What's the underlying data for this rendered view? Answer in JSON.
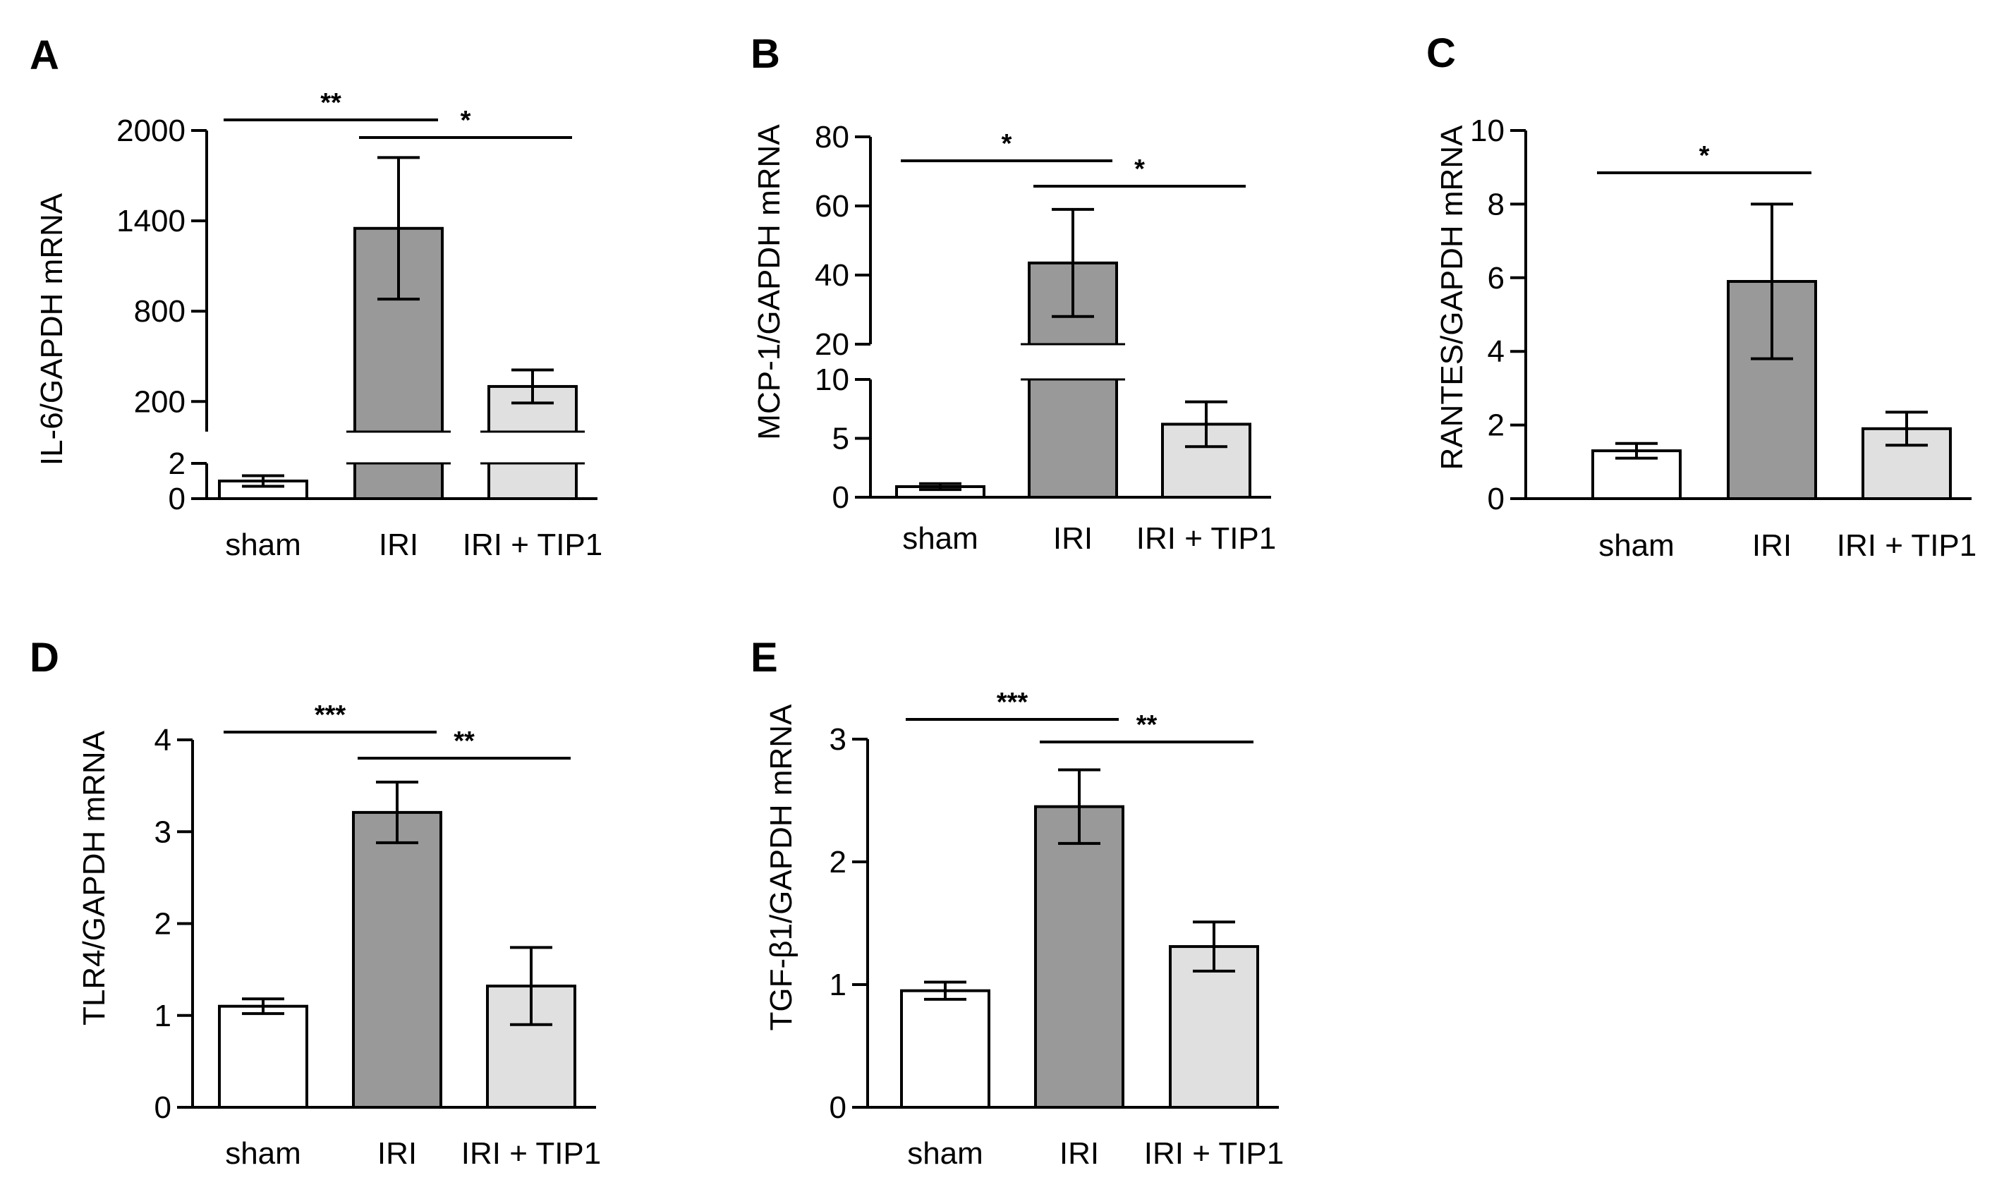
{
  "figure": {
    "bar_colors": {
      "sham": "#ffffff",
      "IRI": "#999999",
      "IRI + TIP1": "#e0e0e0"
    },
    "edge_color": "#000000"
  },
  "chart_data": [
    {
      "panel": "A",
      "type": "bar",
      "ylabel": "IL-6/GAPDH mRNA",
      "categories": [
        "sham",
        "IRI",
        "IRI + TIP1"
      ],
      "values": [
        1,
        1350,
        300
      ],
      "errors": [
        0.3,
        470,
        110
      ],
      "axis_break": {
        "lower": [
          0,
          2
        ],
        "upper": [
          0,
          2000
        ]
      },
      "yticks_lower": [
        "0",
        "2"
      ],
      "yticks_upper": [
        "200",
        "800",
        "1400",
        "2000"
      ],
      "significance": [
        {
          "from": 0,
          "to": 1,
          "label": "**"
        },
        {
          "from": 1,
          "to": 2,
          "label": "*"
        }
      ]
    },
    {
      "panel": "B",
      "type": "bar",
      "ylabel": "MCP-1/GAPDH mRNA",
      "categories": [
        "sham",
        "IRI",
        "IRI + TIP1"
      ],
      "values": [
        0.9,
        43.5,
        6.2
      ],
      "errors": [
        0.25,
        15.5,
        1.9
      ],
      "axis_break": {
        "lower": [
          0,
          10
        ],
        "upper": [
          20,
          80
        ]
      },
      "yticks_lower": [
        "0",
        "5",
        "10"
      ],
      "yticks_upper": [
        "20",
        "40",
        "60",
        "80"
      ],
      "significance": [
        {
          "from": 0,
          "to": 1,
          "label": "*"
        },
        {
          "from": 1,
          "to": 2,
          "label": "*"
        }
      ]
    },
    {
      "panel": "C",
      "type": "bar",
      "ylabel": "RANTES/GAPDH mRNA",
      "categories": [
        "sham",
        "IRI",
        "IRI + TIP1"
      ],
      "values": [
        1.3,
        5.9,
        1.9
      ],
      "errors": [
        0.2,
        2.1,
        0.45
      ],
      "ylim": [
        0,
        10
      ],
      "yticks": [
        "0",
        "2",
        "4",
        "6",
        "8",
        "10"
      ],
      "significance": [
        {
          "from": 0,
          "to": 1,
          "label": "*"
        }
      ]
    },
    {
      "panel": "D",
      "type": "bar",
      "ylabel": "TLR4/GAPDH mRNA",
      "categories": [
        "sham",
        "IRI",
        "IRI + TIP1"
      ],
      "values": [
        1.1,
        3.21,
        1.32
      ],
      "errors": [
        0.08,
        0.33,
        0.42
      ],
      "ylim": [
        0,
        4
      ],
      "yticks": [
        "0",
        "1",
        "2",
        "3",
        "4"
      ],
      "significance": [
        {
          "from": 0,
          "to": 1,
          "label": "***"
        },
        {
          "from": 1,
          "to": 2,
          "label": "**"
        }
      ]
    },
    {
      "panel": "E",
      "type": "bar",
      "ylabel": "TGF-β1/GAPDH mRNA",
      "categories": [
        "sham",
        "IRI",
        "IRI + TIP1"
      ],
      "values": [
        0.95,
        2.45,
        1.31
      ],
      "errors": [
        0.07,
        0.3,
        0.2
      ],
      "ylim": [
        0,
        3
      ],
      "yticks": [
        "0",
        "1",
        "2",
        "3"
      ],
      "significance": [
        {
          "from": 0,
          "to": 1,
          "label": "***"
        },
        {
          "from": 1,
          "to": 2,
          "label": "**"
        }
      ]
    }
  ]
}
